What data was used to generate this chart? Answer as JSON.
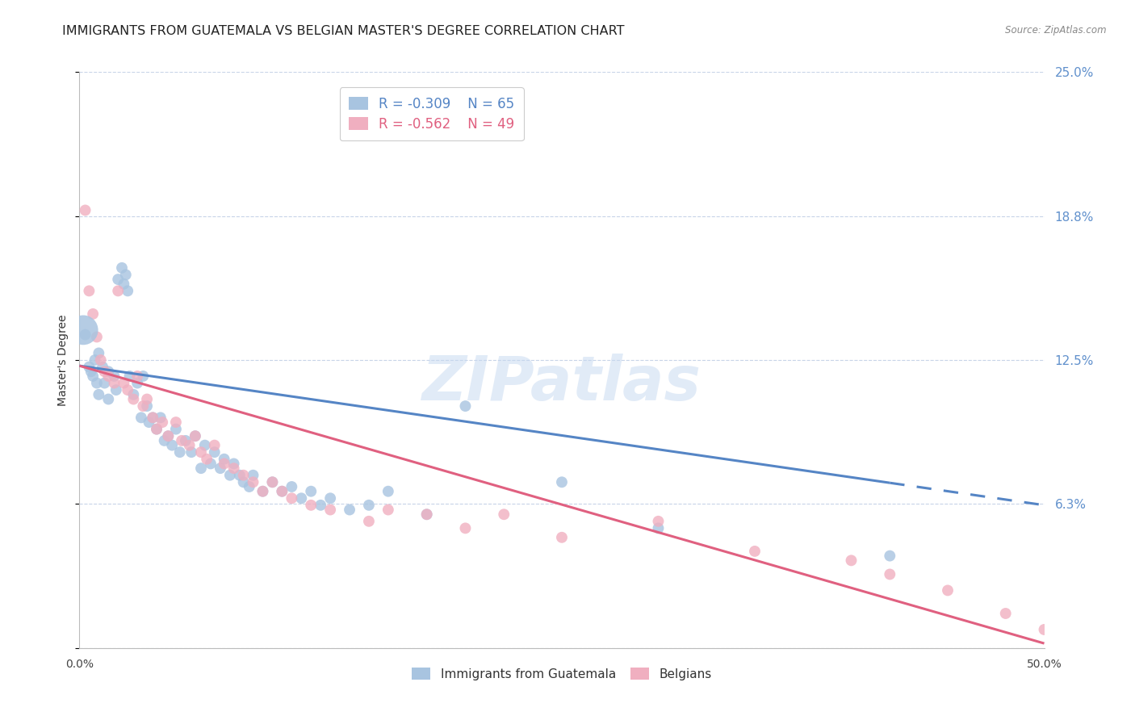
{
  "title": "IMMIGRANTS FROM GUATEMALA VS BELGIAN MASTER'S DEGREE CORRELATION CHART",
  "source": "Source: ZipAtlas.com",
  "ylabel": "Master's Degree",
  "xlim": [
    0.0,
    0.5
  ],
  "ylim": [
    0.0,
    0.25
  ],
  "yticks": [
    0.0,
    0.0625,
    0.125,
    0.1875,
    0.25
  ],
  "ytick_labels": [
    "",
    "6.3%",
    "12.5%",
    "18.8%",
    "25.0%"
  ],
  "xticks": [
    0.0,
    0.125,
    0.25,
    0.375,
    0.5
  ],
  "xtick_labels": [
    "0.0%",
    "",
    "",
    "",
    "50.0%"
  ],
  "blue_color": "#a8c4e0",
  "pink_color": "#f0afc0",
  "blue_line_color": "#5585c5",
  "pink_line_color": "#e06080",
  "right_axis_color": "#6090cc",
  "legend_blue_r": "R = -0.309",
  "legend_blue_n": "N = 65",
  "legend_pink_r": "R = -0.562",
  "legend_pink_n": "N = 49",
  "blue_scatter_x": [
    0.003,
    0.005,
    0.006,
    0.007,
    0.008,
    0.009,
    0.01,
    0.01,
    0.012,
    0.013,
    0.015,
    0.015,
    0.018,
    0.019,
    0.02,
    0.022,
    0.023,
    0.024,
    0.025,
    0.026,
    0.028,
    0.03,
    0.032,
    0.033,
    0.035,
    0.036,
    0.038,
    0.04,
    0.042,
    0.044,
    0.046,
    0.048,
    0.05,
    0.052,
    0.055,
    0.058,
    0.06,
    0.063,
    0.065,
    0.068,
    0.07,
    0.073,
    0.075,
    0.078,
    0.08,
    0.083,
    0.085,
    0.088,
    0.09,
    0.095,
    0.1,
    0.105,
    0.11,
    0.115,
    0.12,
    0.125,
    0.13,
    0.14,
    0.15,
    0.16,
    0.18,
    0.2,
    0.25,
    0.3,
    0.42
  ],
  "blue_scatter_y": [
    0.136,
    0.122,
    0.12,
    0.118,
    0.125,
    0.115,
    0.128,
    0.11,
    0.122,
    0.115,
    0.12,
    0.108,
    0.118,
    0.112,
    0.16,
    0.165,
    0.158,
    0.162,
    0.155,
    0.118,
    0.11,
    0.115,
    0.1,
    0.118,
    0.105,
    0.098,
    0.1,
    0.095,
    0.1,
    0.09,
    0.092,
    0.088,
    0.095,
    0.085,
    0.09,
    0.085,
    0.092,
    0.078,
    0.088,
    0.08,
    0.085,
    0.078,
    0.082,
    0.075,
    0.08,
    0.075,
    0.072,
    0.07,
    0.075,
    0.068,
    0.072,
    0.068,
    0.07,
    0.065,
    0.068,
    0.062,
    0.065,
    0.06,
    0.062,
    0.068,
    0.058,
    0.105,
    0.072,
    0.052,
    0.04
  ],
  "pink_scatter_x": [
    0.003,
    0.005,
    0.007,
    0.009,
    0.011,
    0.013,
    0.015,
    0.018,
    0.02,
    0.023,
    0.025,
    0.028,
    0.03,
    0.033,
    0.035,
    0.038,
    0.04,
    0.043,
    0.046,
    0.05,
    0.053,
    0.057,
    0.06,
    0.063,
    0.066,
    0.07,
    0.075,
    0.08,
    0.085,
    0.09,
    0.095,
    0.1,
    0.105,
    0.11,
    0.12,
    0.13,
    0.15,
    0.16,
    0.18,
    0.2,
    0.22,
    0.25,
    0.3,
    0.35,
    0.4,
    0.42,
    0.45,
    0.48,
    0.5
  ],
  "pink_scatter_y": [
    0.19,
    0.155,
    0.145,
    0.135,
    0.125,
    0.12,
    0.118,
    0.115,
    0.155,
    0.115,
    0.112,
    0.108,
    0.118,
    0.105,
    0.108,
    0.1,
    0.095,
    0.098,
    0.092,
    0.098,
    0.09,
    0.088,
    0.092,
    0.085,
    0.082,
    0.088,
    0.08,
    0.078,
    0.075,
    0.072,
    0.068,
    0.072,
    0.068,
    0.065,
    0.062,
    0.06,
    0.055,
    0.06,
    0.058,
    0.052,
    0.058,
    0.048,
    0.055,
    0.042,
    0.038,
    0.032,
    0.025,
    0.015,
    0.008
  ],
  "blue_line_start_x": 0.0,
  "blue_line_start_y": 0.1225,
  "blue_line_end_x": 0.5,
  "blue_line_end_y": 0.062,
  "blue_line_solid_end_x": 0.42,
  "pink_line_start_x": 0.0,
  "pink_line_start_y": 0.1225,
  "pink_line_end_x": 0.5,
  "pink_line_end_y": 0.002,
  "watermark": "ZIPatlas",
  "bg_color": "#ffffff",
  "grid_color": "#c8d4e8",
  "title_fontsize": 11.5,
  "axis_label_fontsize": 10,
  "tick_label_fontsize": 10,
  "scatter_size": 100
}
